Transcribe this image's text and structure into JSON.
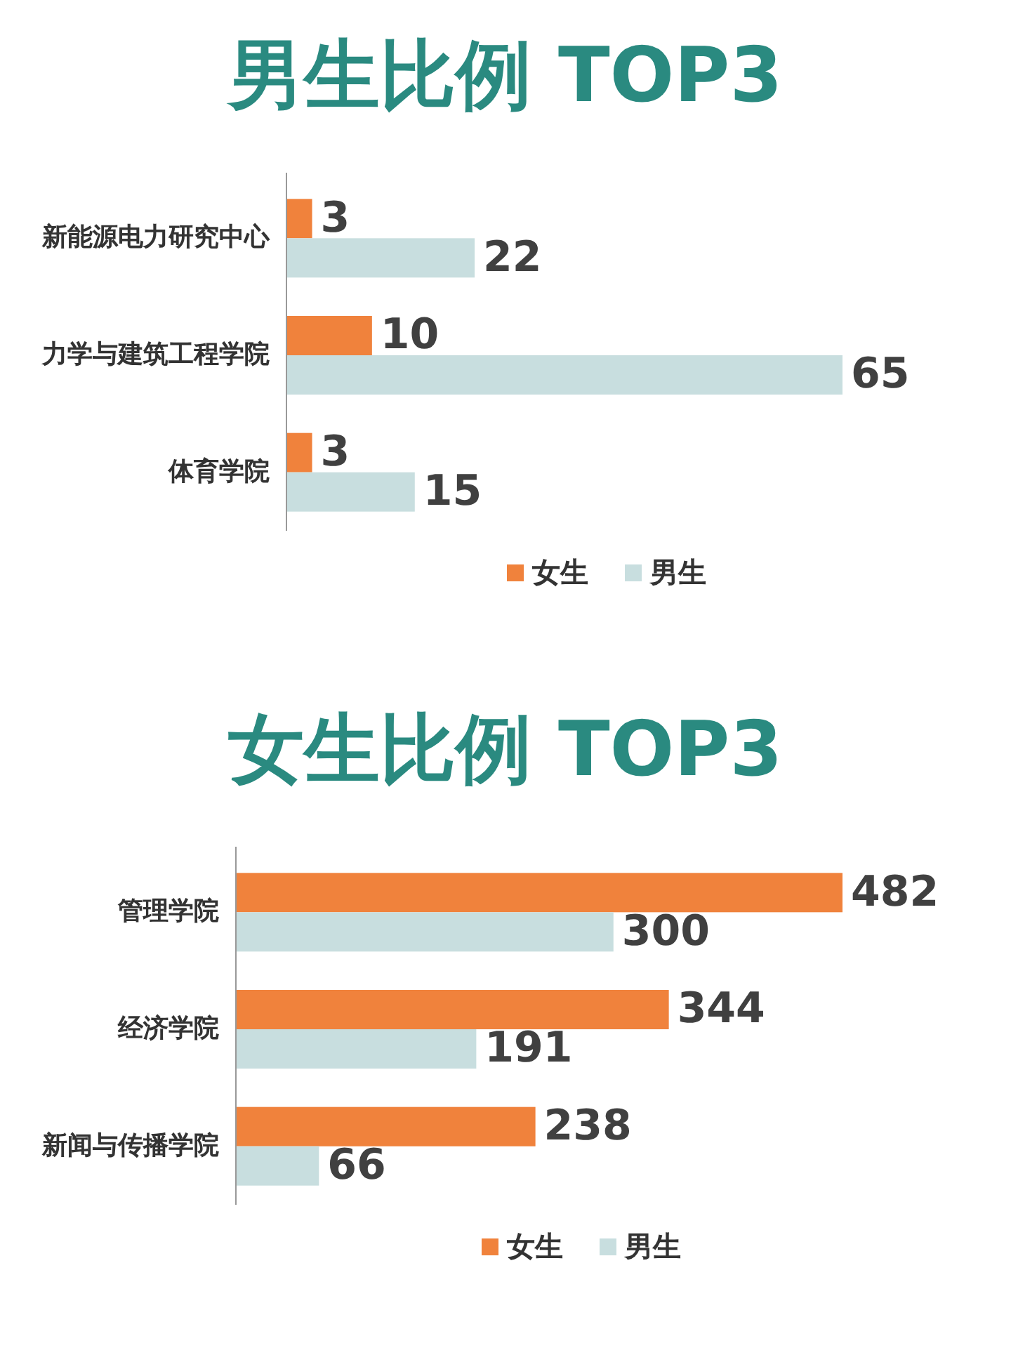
{
  "chart_data": [
    {
      "type": "bar",
      "orientation": "horizontal",
      "title": "男生比例 TOP3",
      "categories": [
        "新能源电力研究中心",
        "力学与建筑工程学院",
        "体育学院"
      ],
      "series": [
        {
          "name": "女生",
          "color": "#f0823c",
          "values": [
            3,
            10,
            3
          ]
        },
        {
          "name": "男生",
          "color": "#c8dedf",
          "values": [
            22,
            65,
            15
          ]
        }
      ],
      "data_labels": true,
      "legend": "bottom"
    },
    {
      "type": "bar",
      "orientation": "horizontal",
      "title": "女生比例 TOP3",
      "categories": [
        "管理学院",
        "经济学院",
        "新闻与传播学院"
      ],
      "series": [
        {
          "name": "女生",
          "color": "#f0823c",
          "values": [
            482,
            344,
            238
          ]
        },
        {
          "name": "男生",
          "color": "#c8dedf",
          "values": [
            300,
            191,
            66
          ]
        }
      ],
      "data_labels": true,
      "legend": "bottom"
    }
  ]
}
